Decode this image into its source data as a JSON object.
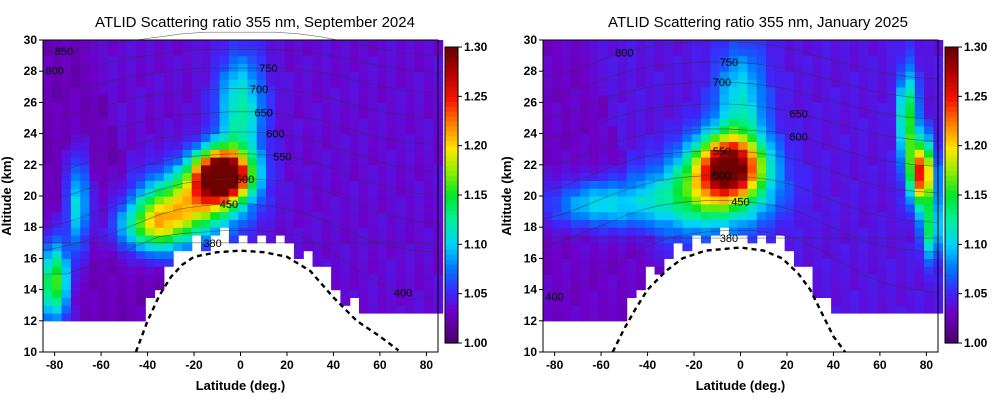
{
  "chart_data": [
    {
      "type": "heatmap",
      "title": "ATLID Scattering ratio 355 nm, September 2024",
      "xlabel": "Latitude (deg.)",
      "ylabel": "Altitude (km)",
      "xlim": [
        -85,
        85
      ],
      "ylim": [
        10,
        30
      ],
      "xticks": [
        "-80",
        "-60",
        "-40",
        "-20",
        "0",
        "20",
        "40",
        "60",
        "80"
      ],
      "yticks": [
        "10",
        "12",
        "14",
        "16",
        "18",
        "20",
        "22",
        "24",
        "26",
        "28",
        "30"
      ],
      "colorbar": {
        "range": [
          1.0,
          1.3
        ],
        "ticks": [
          "1.00",
          "1.05",
          "1.10",
          "1.15",
          "1.20",
          "1.25",
          "1.30"
        ]
      },
      "plumes": [
        {
          "lat": -8,
          "alt": 21.4,
          "peak": 0.32,
          "wlat": 12,
          "walt": 1.6
        },
        {
          "lat": -22,
          "alt": 19.5,
          "peak": 0.15,
          "wlat": 20,
          "walt": 2.0
        },
        {
          "lat": -38,
          "alt": 18.0,
          "peak": 0.12,
          "wlat": 14,
          "walt": 1.6
        },
        {
          "lat": 0,
          "alt": 25.5,
          "peak": 0.09,
          "wlat": 10,
          "walt": 3.5
        },
        {
          "lat": -80,
          "alt": 14.5,
          "peak": 0.14,
          "wlat": 6,
          "walt": 2.5
        },
        {
          "lat": -70,
          "alt": 19.5,
          "peak": 0.08,
          "wlat": 5,
          "walt": 3
        }
      ],
      "background_level": 0.035,
      "tropopause_km": [
        [
          -45,
          10
        ],
        [
          -40,
          12
        ],
        [
          -35,
          13.6
        ],
        [
          -30,
          14.8
        ],
        [
          -25,
          15.6
        ],
        [
          -20,
          16.1
        ],
        [
          -10,
          16.4
        ],
        [
          0,
          16.5
        ],
        [
          10,
          16.4
        ],
        [
          20,
          16.1
        ],
        [
          30,
          15.2
        ],
        [
          40,
          13.5
        ],
        [
          50,
          12
        ],
        [
          60,
          11
        ],
        [
          68,
          10.1
        ]
      ],
      "isentropes": [
        {
          "label": "380",
          "label_lat": -12,
          "alt": [
            17,
            17,
            17,
            17,
            17,
            17,
            17,
            17,
            17,
            17,
            17,
            17,
            17,
            17,
            17,
            17,
            17,
            17
          ]
        },
        {
          "label": "400",
          "label_lat": 70,
          "alt": [
            15,
            15,
            15.5,
            16,
            16.8,
            17.4,
            17.6,
            17.7,
            17.8,
            17.8,
            17.7,
            17.5,
            16.8,
            15.8,
            14.8,
            14,
            13.6,
            13.4
          ]
        },
        {
          "label": "450",
          "label_lat": -5,
          "alt": [
            16.5,
            16.8,
            17.2,
            17.6,
            18.2,
            18.8,
            19.2,
            19.4,
            19.5,
            19.5,
            19.3,
            19,
            18.5,
            17.8,
            17.2,
            16.8,
            16.5,
            16.4
          ]
        },
        {
          "label": "500",
          "label_lat": 2,
          "alt": [
            18,
            18.3,
            18.8,
            19.3,
            19.9,
            20.4,
            20.8,
            21,
            21.1,
            21.1,
            21,
            20.8,
            20.4,
            19.8,
            19.2,
            18.7,
            18.4,
            18.2
          ]
        },
        {
          "label": "550",
          "label_lat": 18,
          "alt": [
            19.8,
            20,
            20.5,
            21.2,
            21.8,
            22.2,
            22.5,
            22.6,
            22.7,
            22.7,
            22.6,
            22.4,
            22,
            21.5,
            20.9,
            20.5,
            20.2,
            20
          ]
        },
        {
          "label": "600",
          "label_lat": 15,
          "alt": [
            21.5,
            21.7,
            22.2,
            22.8,
            23.3,
            23.7,
            23.9,
            24,
            24.1,
            24.1,
            24,
            23.8,
            23.4,
            22.9,
            22.4,
            22,
            21.7,
            21.5
          ]
        },
        {
          "label": "650",
          "label_lat": 10,
          "alt": [
            23.5,
            23.6,
            23.9,
            24.3,
            24.7,
            25,
            25.2,
            25.3,
            25.4,
            25.4,
            25.3,
            25.1,
            24.8,
            24.4,
            23.9,
            23.6,
            23.4,
            23.3
          ]
        },
        {
          "label": "700",
          "label_lat": 8,
          "alt": [
            25,
            25.2,
            25.5,
            25.9,
            26.3,
            26.5,
            26.7,
            26.8,
            26.9,
            26.9,
            26.8,
            26.7,
            26.4,
            26,
            25.6,
            25.3,
            25.1,
            25
          ]
        },
        {
          "label": "750",
          "label_lat": 12,
          "alt": [
            26.5,
            26.7,
            27,
            27.4,
            27.7,
            27.9,
            28.1,
            28.2,
            28.2,
            28.2,
            28.2,
            28.1,
            27.9,
            27.6,
            27.2,
            26.9,
            26.7,
            26.6
          ]
        },
        {
          "label": "800",
          "label_lat": -80,
          "alt": [
            28,
            28.1,
            28.3,
            28.6,
            28.9,
            29.1,
            29.3,
            29.4,
            29.4,
            29.4,
            29.4,
            29.3,
            29.1,
            28.8,
            28.5,
            28.2,
            28,
            27.9
          ]
        },
        {
          "label": "850",
          "label_lat": -76,
          "alt": [
            29.2,
            29.3,
            29.5,
            29.8,
            30,
            30.2,
            30.4,
            30.5,
            30.5,
            30.5,
            30.5,
            30.4,
            30.2,
            29.9,
            29.6,
            29.3,
            29.1,
            29
          ]
        }
      ],
      "isentrope_lats": [
        -85,
        -75,
        -65,
        -55,
        -45,
        -35,
        -25,
        -15,
        -5,
        5,
        15,
        25,
        35,
        45,
        55,
        65,
        75,
        85
      ]
    },
    {
      "type": "heatmap",
      "title": "ATLID Scattering ratio 355 nm, January 2025",
      "xlabel": "Latitude (deg.)",
      "ylabel": "Altitude (km)",
      "xlim": [
        -85,
        85
      ],
      "ylim": [
        10,
        30
      ],
      "xticks": [
        "-80",
        "-60",
        "-40",
        "-20",
        "0",
        "20",
        "40",
        "60",
        "80"
      ],
      "yticks": [
        "10",
        "12",
        "14",
        "16",
        "18",
        "20",
        "22",
        "24",
        "26",
        "28",
        "30"
      ],
      "colorbar": {
        "range": [
          1.0,
          1.3
        ],
        "ticks": [
          "1.00",
          "1.05",
          "1.10",
          "1.15",
          "1.20",
          "1.25",
          "1.30"
        ]
      },
      "plumes": [
        {
          "lat": -5,
          "alt": 22.0,
          "peak": 0.24,
          "wlat": 15,
          "walt": 2.0
        },
        {
          "lat": -15,
          "alt": 20.0,
          "peak": 0.11,
          "wlat": 25,
          "walt": 2.2
        },
        {
          "lat": 0,
          "alt": 26.0,
          "peak": 0.07,
          "wlat": 11,
          "walt": 3.5
        },
        {
          "lat": 78,
          "alt": 21.5,
          "peak": 0.22,
          "wlat": 5,
          "walt": 2.0
        },
        {
          "lat": 72,
          "alt": 25.0,
          "peak": 0.12,
          "wlat": 4,
          "walt": 3.0
        },
        {
          "lat": 82,
          "alt": 18.0,
          "peak": 0.1,
          "wlat": 4,
          "walt": 2.0
        },
        {
          "lat": -60,
          "alt": 19.5,
          "peak": 0.07,
          "wlat": 22,
          "walt": 1.5
        }
      ],
      "background_level": 0.04,
      "tropopause_km": [
        [
          -55,
          10
        ],
        [
          -50,
          11.5
        ],
        [
          -45,
          12.8
        ],
        [
          -40,
          14
        ],
        [
          -32,
          15.2
        ],
        [
          -25,
          16
        ],
        [
          -15,
          16.5
        ],
        [
          0,
          16.7
        ],
        [
          10,
          16.5
        ],
        [
          18,
          16
        ],
        [
          25,
          15
        ],
        [
          30,
          14
        ],
        [
          35,
          12.5
        ],
        [
          40,
          11
        ],
        [
          45,
          10
        ]
      ],
      "isentropes": [
        {
          "label": "380",
          "label_lat": -5,
          "alt": [
            17.3,
            17.3,
            17.3,
            17.3,
            17.3,
            17.3,
            17.3,
            17.3,
            17.3,
            17.3,
            17.3,
            17.3,
            17.3,
            17.3,
            17.3,
            17.3,
            17.3,
            17.3
          ]
        },
        {
          "label": "400",
          "label_lat": -80,
          "alt": [
            13.3,
            13.8,
            14.6,
            15.6,
            16.4,
            17.1,
            17.5,
            17.7,
            17.8,
            17.8,
            17.6,
            17.2,
            16.5,
            15.6,
            14.8,
            14.3,
            14,
            13.8
          ]
        },
        {
          "label": "450",
          "label_lat": 0,
          "alt": [
            16.8,
            17.2,
            17.8,
            18.4,
            19,
            19.4,
            19.6,
            19.7,
            19.7,
            19.6,
            19.4,
            19,
            18.3,
            17.6,
            17,
            16.7,
            16.5,
            16.4
          ]
        },
        {
          "label": "500",
          "label_lat": -8,
          "alt": [
            18.5,
            18.9,
            19.5,
            20.1,
            20.6,
            21,
            21.2,
            21.3,
            21.3,
            21.2,
            21,
            20.6,
            20,
            19.4,
            18.9,
            18.6,
            18.4,
            18.3
          ]
        },
        {
          "label": "550",
          "label_lat": -8,
          "alt": [
            20.3,
            20.7,
            21.3,
            21.9,
            22.4,
            22.7,
            22.8,
            22.9,
            22.9,
            22.8,
            22.6,
            22.3,
            21.8,
            21.3,
            20.8,
            20.5,
            20.3,
            20.2
          ]
        },
        {
          "label": "600",
          "label_lat": 25,
          "alt": [
            21.9,
            22.2,
            22.8,
            23.4,
            23.8,
            24.1,
            24.2,
            24.3,
            24.3,
            24.2,
            24.1,
            23.8,
            23.4,
            22.9,
            22.5,
            22.2,
            22,
            21.9
          ]
        },
        {
          "label": "650",
          "label_lat": 25,
          "alt": [
            23.6,
            23.9,
            24.4,
            25,
            25.4,
            25.7,
            25.8,
            25.9,
            25.9,
            25.8,
            25.6,
            25.3,
            24.9,
            24.5,
            24.1,
            23.8,
            23.6,
            23.5
          ]
        },
        {
          "label": "700",
          "label_lat": -8,
          "alt": [
            25,
            25.3,
            25.8,
            26.4,
            26.8,
            27.1,
            27.2,
            27.3,
            27.3,
            27.2,
            27,
            26.7,
            26.3,
            25.9,
            25.5,
            25.2,
            25,
            24.9
          ]
        },
        {
          "label": "750",
          "label_lat": -5,
          "alt": [
            26.3,
            26.6,
            27.1,
            27.7,
            28.1,
            28.4,
            28.5,
            28.6,
            28.6,
            28.5,
            28.3,
            28,
            27.6,
            27.2,
            26.8,
            26.5,
            26.3,
            26.2
          ]
        },
        {
          "label": "800",
          "label_lat": -50,
          "alt": [
            27.6,
            27.9,
            28.4,
            29,
            29.4,
            29.7,
            29.8,
            29.9,
            29.9,
            29.8,
            29.6,
            29.3,
            28.9,
            28.5,
            28.1,
            27.8,
            27.6,
            27.5
          ]
        }
      ],
      "isentrope_lats": [
        -85,
        -75,
        -65,
        -55,
        -45,
        -35,
        -25,
        -15,
        -5,
        5,
        15,
        25,
        35,
        45,
        55,
        65,
        75,
        85
      ]
    }
  ]
}
